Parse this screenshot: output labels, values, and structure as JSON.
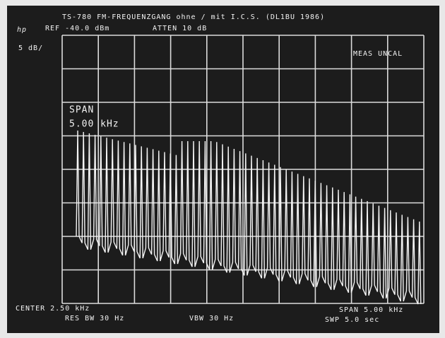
{
  "header": {
    "title": "TS-780  FM-FREQUENZGANG  ohne / mit I.C.S. (DL1BU 1986)",
    "logo": "hp",
    "reference": "REF -40.0 dBm",
    "attenuation": "ATTEN 10 dB"
  },
  "display": {
    "scale": "5 dB/",
    "status": "MEAS UNCAL",
    "span_caption": "SPAN",
    "span_value": "5.00 kHz"
  },
  "footer": {
    "center": "CENTER 2.50 kHz",
    "span": "SPAN 5.00 kHz",
    "resolution_bw": "RES BW 30 Hz",
    "video_bw": "VBW 30 Hz",
    "sweep": "SWP 5.0 sec"
  }
}
